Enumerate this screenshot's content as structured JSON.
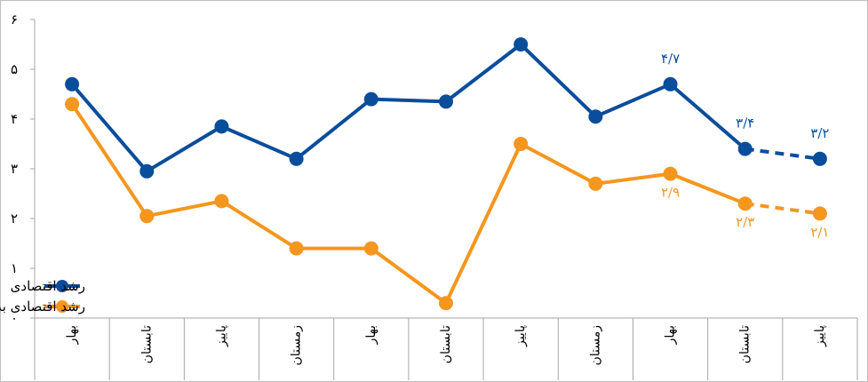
{
  "chart_data": {
    "type": "line",
    "categories": [
      "بهار",
      "تابستان",
      "پاییز",
      "زمستان",
      "بهار",
      "تابستان",
      "پاییز",
      "زمستان",
      "بهار",
      "تابستان",
      "پاییز"
    ],
    "ylim": [
      0,
      6
    ],
    "yticks": [
      0,
      1,
      2,
      3,
      4,
      5,
      6
    ],
    "ytick_labels": [
      "۰",
      "۱",
      "۲",
      "۳",
      "۴",
      "۵",
      "۶"
    ],
    "grid": false,
    "legend_position": "bottom-left",
    "series": [
      {
        "name": "رشد اقتصادی",
        "color": "#0A4D9B",
        "values": [
          4.7,
          2.95,
          3.85,
          3.2,
          4.4,
          4.35,
          5.5,
          4.05,
          4.7,
          3.4,
          3.2
        ],
        "projected_from_index": 9,
        "data_labels": [
          {
            "index": 8,
            "text": "۴/۷"
          },
          {
            "index": 9,
            "text": "۳/۴"
          },
          {
            "index": 10,
            "text": "۳/۲"
          }
        ]
      },
      {
        "name": "رشد اقتصادی بدون نفت",
        "color": "#F5961E",
        "values": [
          4.3,
          2.05,
          2.35,
          1.4,
          1.4,
          0.3,
          3.5,
          2.7,
          2.9,
          2.3,
          2.1
        ],
        "projected_from_index": 9,
        "data_labels": [
          {
            "index": 8,
            "text": "۲/۹"
          },
          {
            "index": 9,
            "text": "۲/۳"
          },
          {
            "index": 10,
            "text": "۲/۱"
          }
        ]
      }
    ]
  }
}
